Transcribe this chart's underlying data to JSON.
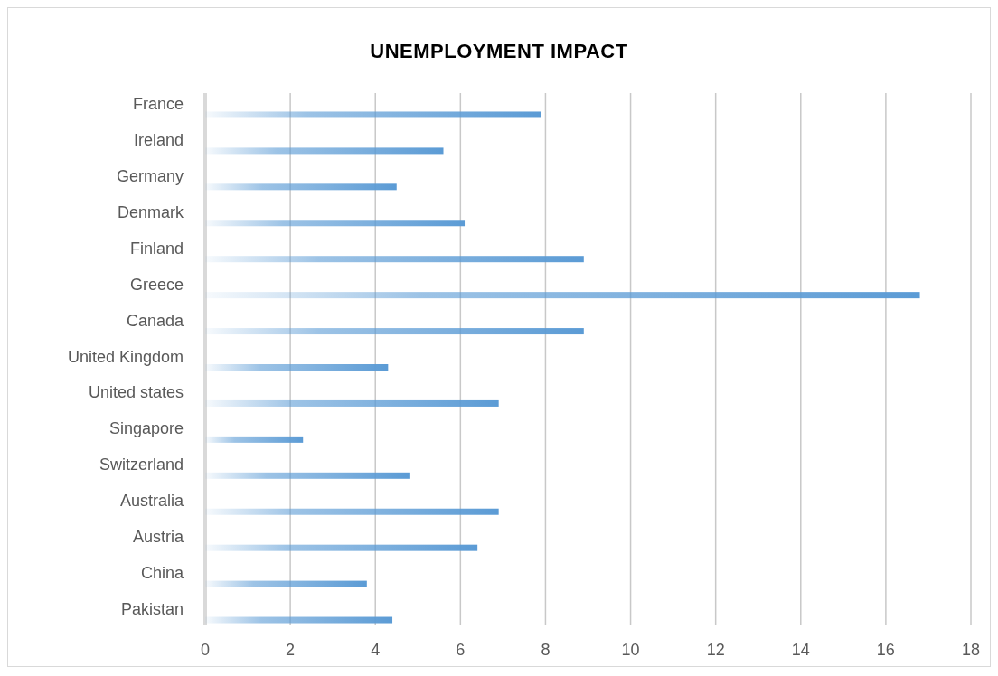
{
  "chart_data": {
    "type": "bar",
    "orientation": "horizontal",
    "title": "UNEMPLOYMENT IMPACT",
    "categories": [
      "France",
      "Ireland",
      "Germany",
      "Denmark",
      "Finland",
      "Greece",
      "Canada",
      "United Kingdom",
      "United states",
      "Singapore",
      "Switzerland",
      "Australia",
      "Austria",
      "China",
      "Pakistan"
    ],
    "values": [
      7.9,
      5.6,
      4.5,
      6.1,
      8.9,
      16.8,
      8.9,
      4.3,
      6.9,
      2.3,
      4.8,
      6.9,
      6.4,
      3.8,
      4.4
    ],
    "color": "#5b9bd5",
    "xlim": [
      0,
      18
    ],
    "xticks": [
      0,
      2,
      4,
      6,
      8,
      10,
      12,
      14,
      16,
      18
    ],
    "grid": "x"
  }
}
